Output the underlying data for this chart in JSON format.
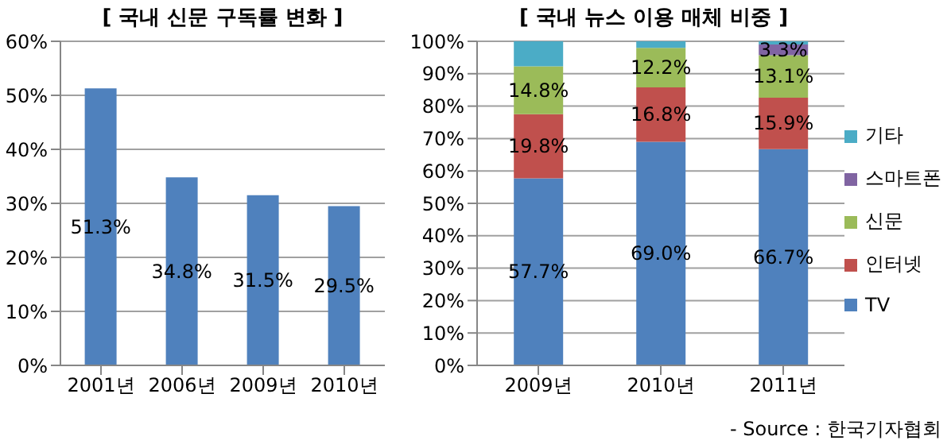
{
  "chart_data": [
    {
      "type": "bar",
      "title": "[ 국내 신문 구독률 변화 ]",
      "categories": [
        "2001년",
        "2006년",
        "2009년",
        "2010년"
      ],
      "series": [
        {
          "color": "#4f81bd",
          "values": [
            51.3,
            34.8,
            31.5,
            29.5
          ],
          "value_labels": [
            "51.3%",
            "34.8%",
            "31.5%",
            "29.5%"
          ]
        }
      ],
      "ylim": [
        0,
        60
      ],
      "yticks": [
        {
          "value": 0,
          "label": "0%"
        },
        {
          "value": 10,
          "label": "10%"
        },
        {
          "value": 20,
          "label": "20%"
        },
        {
          "value": 30,
          "label": "30%"
        },
        {
          "value": 40,
          "label": "40%"
        },
        {
          "value": 50,
          "label": "50%"
        },
        {
          "value": 60,
          "label": "60%"
        }
      ],
      "grid": "y",
      "legend": false
    },
    {
      "type": "bar",
      "title": "[ 국내 뉴스 이용 매체 비중 ]",
      "categories": [
        "2009년",
        "2010년",
        "2011년"
      ],
      "stacked": true,
      "series": [
        {
          "name": "TV",
          "color": "#4f81bd",
          "values": [
            57.7,
            69.0,
            66.7
          ],
          "value_labels": [
            "57.7%",
            "69.0%",
            "66.7%"
          ]
        },
        {
          "name": "인터넷",
          "color": "#c0504d",
          "values": [
            19.8,
            16.8,
            15.9
          ],
          "value_labels": [
            "19.8%",
            "16.8%",
            "15.9%"
          ]
        },
        {
          "name": "신문",
          "color": "#9bbb59",
          "values": [
            14.8,
            12.2,
            13.1
          ],
          "value_labels": [
            "14.8%",
            "12.2%",
            "13.1%"
          ]
        },
        {
          "name": "스마트폰",
          "color": "#8064a2",
          "values": [
            null,
            null,
            3.3
          ],
          "value_labels": [
            null,
            null,
            "3.3%"
          ]
        },
        {
          "name": "기타",
          "color": "#4bacc6",
          "values": [
            7.7,
            2.0,
            1.0
          ],
          "value_labels": [
            null,
            null,
            null
          ]
        }
      ],
      "ylim": [
        0,
        100
      ],
      "yticks": [
        {
          "value": 0,
          "label": "0%"
        },
        {
          "value": 10,
          "label": "10%"
        },
        {
          "value": 20,
          "label": "20%"
        },
        {
          "value": 30,
          "label": "30%"
        },
        {
          "value": 40,
          "label": "40%"
        },
        {
          "value": 50,
          "label": "50%"
        },
        {
          "value": 60,
          "label": "60%"
        },
        {
          "value": 70,
          "label": "70%"
        },
        {
          "value": 80,
          "label": "80%"
        },
        {
          "value": 90,
          "label": "90%"
        },
        {
          "value": 100,
          "label": "100%"
        }
      ],
      "grid": "y",
      "legend": "right",
      "annotations": [
        "- Source : 한국기자협회"
      ]
    }
  ]
}
